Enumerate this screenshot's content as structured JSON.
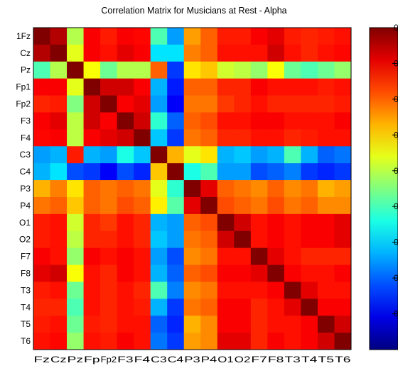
{
  "chart_data": {
    "type": "heatmap",
    "title": "Correlation Matrix for Musicians at Rest  - Alpha",
    "row_labels": [
      "1Fz",
      "Cz",
      "Pz",
      "Fp1",
      "Fp2",
      "F3",
      "F4",
      "C3",
      "C4",
      "P3",
      "P4",
      "O1",
      "O2",
      "F7",
      "F8",
      "T3",
      "T4",
      "T5",
      "T6"
    ],
    "col_labels": [
      "Fz",
      "Cz",
      "Pz",
      "Fp",
      "Fp2",
      "F3",
      "F4",
      "C3",
      "C4",
      "P3",
      "P4",
      "O1",
      "O2",
      "F7",
      "F8",
      "T3",
      "T4",
      "T5",
      "T6"
    ],
    "colorbar_tick_labels": [
      "",
      "0",
      "0",
      "0",
      "0",
      "0",
      "0",
      "0",
      "0",
      "0"
    ],
    "colormap": "jet",
    "clim": [
      0,
      1
    ],
    "values": [
      [
        1.0,
        0.95,
        0.55,
        0.88,
        0.85,
        0.88,
        0.87,
        0.45,
        0.28,
        0.72,
        0.78,
        0.85,
        0.85,
        0.88,
        0.9,
        0.85,
        0.84,
        0.85,
        0.86
      ],
      [
        0.95,
        1.0,
        0.6,
        0.88,
        0.86,
        0.9,
        0.88,
        0.35,
        0.35,
        0.75,
        0.78,
        0.86,
        0.86,
        0.86,
        0.92,
        0.86,
        0.84,
        0.86,
        0.87
      ],
      [
        0.45,
        0.55,
        1.0,
        0.62,
        0.48,
        0.55,
        0.55,
        0.78,
        0.18,
        0.65,
        0.68,
        0.58,
        0.56,
        0.52,
        0.62,
        0.48,
        0.45,
        0.48,
        0.52
      ],
      [
        0.88,
        0.88,
        0.6,
        1.0,
        0.92,
        0.92,
        0.88,
        0.3,
        0.15,
        0.78,
        0.78,
        0.84,
        0.84,
        0.88,
        0.86,
        0.86,
        0.86,
        0.85,
        0.86
      ],
      [
        0.84,
        0.85,
        0.5,
        0.92,
        1.0,
        0.88,
        0.9,
        0.28,
        0.12,
        0.76,
        0.76,
        0.82,
        0.84,
        0.86,
        0.84,
        0.84,
        0.84,
        0.84,
        0.85
      ],
      [
        0.88,
        0.9,
        0.56,
        0.92,
        0.88,
        1.0,
        0.92,
        0.42,
        0.22,
        0.78,
        0.8,
        0.86,
        0.86,
        0.88,
        0.88,
        0.86,
        0.86,
        0.86,
        0.88
      ],
      [
        0.87,
        0.88,
        0.56,
        0.88,
        0.9,
        0.92,
        1.0,
        0.32,
        0.18,
        0.76,
        0.78,
        0.84,
        0.84,
        0.86,
        0.86,
        0.84,
        0.85,
        0.86,
        0.86
      ],
      [
        0.28,
        0.3,
        0.85,
        0.3,
        0.28,
        0.4,
        0.32,
        1.0,
        0.7,
        0.6,
        0.65,
        0.3,
        0.32,
        0.28,
        0.3,
        0.45,
        0.3,
        0.22,
        0.24
      ],
      [
        0.3,
        0.35,
        0.2,
        0.18,
        0.12,
        0.2,
        0.16,
        0.68,
        1.0,
        0.4,
        0.45,
        0.28,
        0.28,
        0.2,
        0.22,
        0.25,
        0.18,
        0.16,
        0.18
      ],
      [
        0.7,
        0.75,
        0.65,
        0.78,
        0.76,
        0.78,
        0.76,
        0.6,
        0.42,
        1.0,
        0.9,
        0.78,
        0.76,
        0.74,
        0.78,
        0.74,
        0.76,
        0.7,
        0.72
      ],
      [
        0.76,
        0.78,
        0.68,
        0.78,
        0.76,
        0.8,
        0.78,
        0.64,
        0.46,
        0.9,
        1.0,
        0.8,
        0.78,
        0.76,
        0.8,
        0.76,
        0.78,
        0.74,
        0.74
      ],
      [
        0.85,
        0.86,
        0.58,
        0.84,
        0.82,
        0.86,
        0.84,
        0.3,
        0.28,
        0.78,
        0.8,
        1.0,
        0.92,
        0.86,
        0.88,
        0.86,
        0.88,
        0.88,
        0.9
      ],
      [
        0.85,
        0.86,
        0.56,
        0.84,
        0.84,
        0.86,
        0.84,
        0.32,
        0.28,
        0.76,
        0.78,
        0.92,
        1.0,
        0.86,
        0.88,
        0.86,
        0.88,
        0.88,
        0.9
      ],
      [
        0.88,
        0.86,
        0.52,
        0.88,
        0.86,
        0.88,
        0.86,
        0.28,
        0.2,
        0.74,
        0.76,
        0.86,
        0.86,
        1.0,
        0.9,
        0.86,
        0.84,
        0.84,
        0.84
      ],
      [
        0.9,
        0.92,
        0.62,
        0.86,
        0.84,
        0.88,
        0.86,
        0.3,
        0.22,
        0.78,
        0.8,
        0.88,
        0.88,
        0.9,
        1.0,
        0.88,
        0.86,
        0.86,
        0.88
      ],
      [
        0.85,
        0.86,
        0.48,
        0.86,
        0.84,
        0.86,
        0.84,
        0.45,
        0.25,
        0.74,
        0.76,
        0.86,
        0.86,
        0.86,
        0.88,
        1.0,
        0.9,
        0.86,
        0.86
      ],
      [
        0.84,
        0.84,
        0.45,
        0.86,
        0.84,
        0.86,
        0.85,
        0.3,
        0.18,
        0.76,
        0.78,
        0.88,
        0.88,
        0.84,
        0.86,
        0.9,
        1.0,
        0.88,
        0.88
      ],
      [
        0.85,
        0.86,
        0.48,
        0.85,
        0.84,
        0.86,
        0.86,
        0.22,
        0.16,
        0.7,
        0.74,
        0.88,
        0.88,
        0.84,
        0.86,
        0.86,
        0.88,
        1.0,
        0.92
      ],
      [
        0.86,
        0.87,
        0.52,
        0.86,
        0.85,
        0.88,
        0.86,
        0.24,
        0.18,
        0.72,
        0.74,
        0.9,
        0.9,
        0.84,
        0.88,
        0.86,
        0.88,
        0.92,
        1.0
      ]
    ]
  }
}
